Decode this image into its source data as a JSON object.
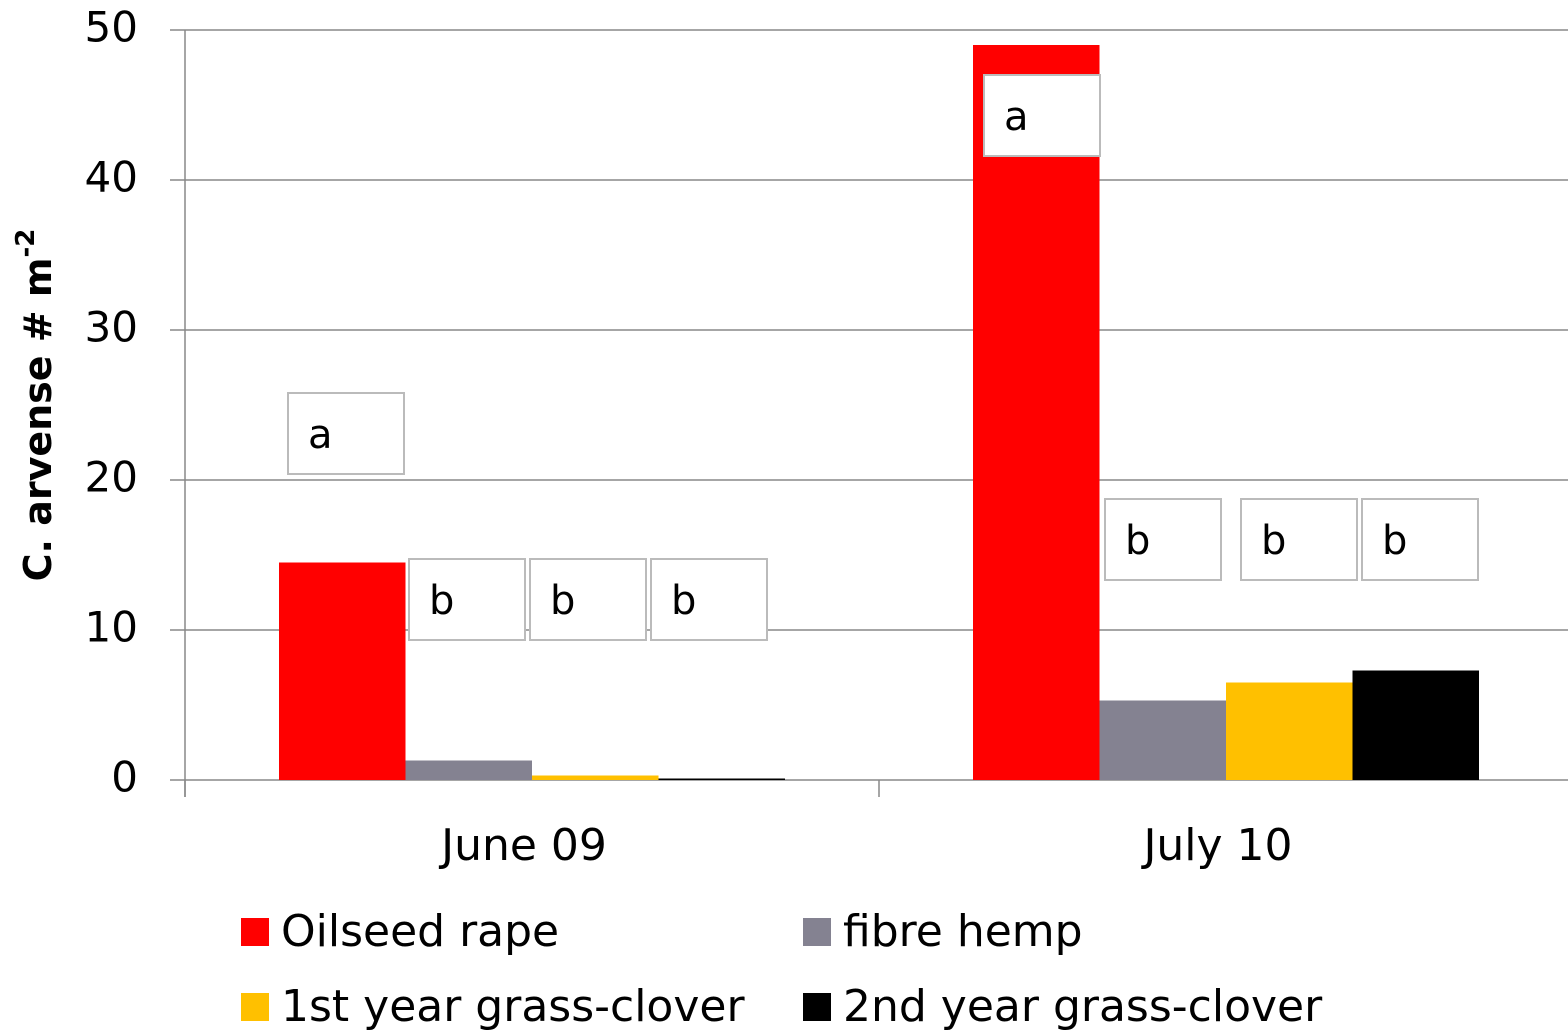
{
  "chart_data": {
    "type": "bar",
    "y_label": "C. arvense # m",
    "y_label_superscript": "-2",
    "categories": [
      "June 09",
      "July 10"
    ],
    "series": [
      {
        "name": "Oilseed rape",
        "color": "#ff0000",
        "values": [
          14.5,
          49
        ],
        "annotations": [
          "a",
          "a"
        ]
      },
      {
        "name": "fibre hemp",
        "color": "#848291",
        "values": [
          1.3,
          5.3
        ],
        "annotations": [
          "b",
          "b"
        ]
      },
      {
        "name": "1st year grass-clover",
        "color": "#ffc000",
        "values": [
          0.3,
          6.5
        ],
        "annotations": [
          "b",
          "b"
        ]
      },
      {
        "name": "2nd year grass-clover",
        "color": "#000000",
        "values": [
          0.1,
          7.3
        ],
        "annotations": [
          "b",
          "b"
        ]
      }
    ],
    "ylim": [
      0,
      50
    ],
    "yticks": [
      0,
      10,
      20,
      30,
      40,
      50
    ],
    "grid": true
  }
}
